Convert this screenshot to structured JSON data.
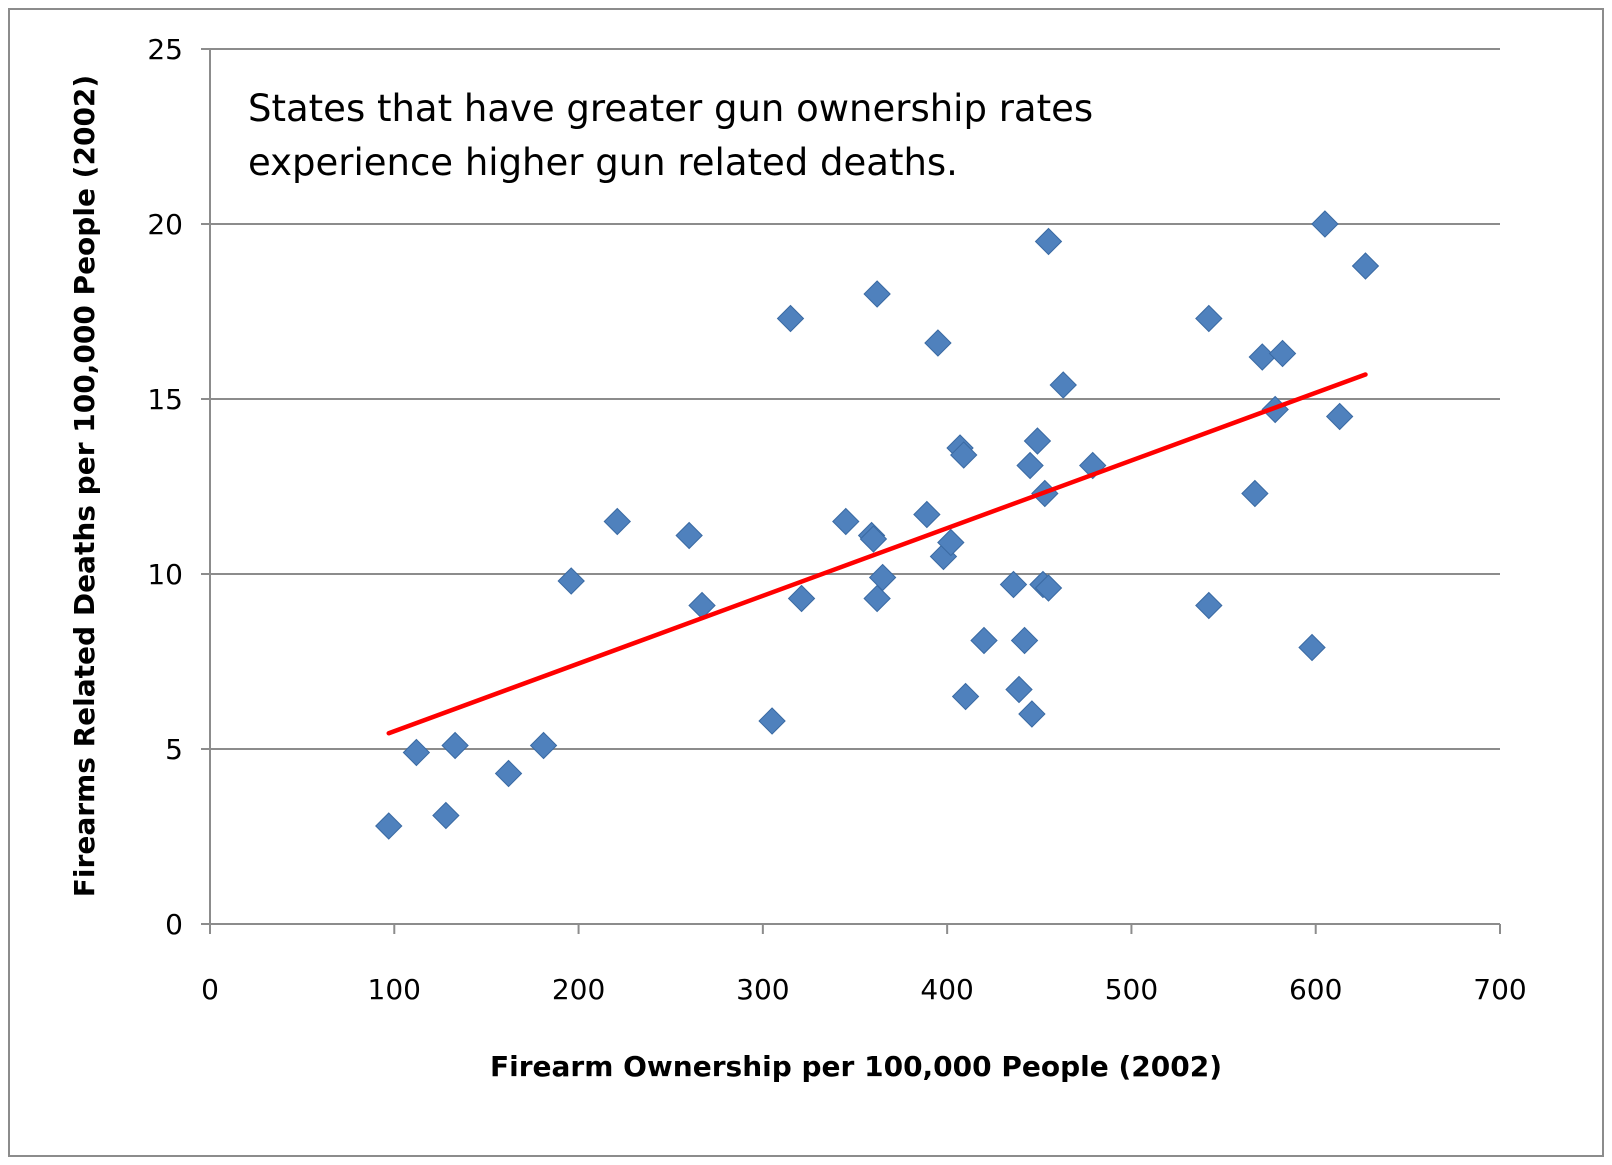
{
  "chart_data": {
    "type": "scatter",
    "xlabel": "Firearm Ownership per 100,000 People (2002)",
    "ylabel": "Firearms Related Deaths per 100,000 People (2002)",
    "annotation_lines": [
      "States that have greater gun ownership rates",
      "experience higher gun related deaths."
    ],
    "xlim": [
      0,
      700
    ],
    "ylim": [
      0,
      25
    ],
    "x_ticks": [
      0,
      100,
      200,
      300,
      400,
      500,
      600,
      700
    ],
    "y_ticks": [
      0,
      5,
      10,
      15,
      20,
      25
    ],
    "grid": "horizontal",
    "marker_color": "#4f81bd",
    "trendline_color": "#ff0000",
    "points": [
      {
        "x": 97,
        "y": 2.8
      },
      {
        "x": 112,
        "y": 4.9
      },
      {
        "x": 128,
        "y": 3.1
      },
      {
        "x": 133,
        "y": 5.1
      },
      {
        "x": 162,
        "y": 4.3
      },
      {
        "x": 181,
        "y": 5.1
      },
      {
        "x": 196,
        "y": 9.8
      },
      {
        "x": 221,
        "y": 11.5
      },
      {
        "x": 260,
        "y": 11.1
      },
      {
        "x": 267,
        "y": 9.1
      },
      {
        "x": 305,
        "y": 5.8
      },
      {
        "x": 315,
        "y": 17.3
      },
      {
        "x": 321,
        "y": 9.3
      },
      {
        "x": 345,
        "y": 11.5
      },
      {
        "x": 359,
        "y": 11.1
      },
      {
        "x": 360,
        "y": 11.0
      },
      {
        "x": 362,
        "y": 18.0
      },
      {
        "x": 362,
        "y": 9.3
      },
      {
        "x": 365,
        "y": 9.9
      },
      {
        "x": 389,
        "y": 11.7
      },
      {
        "x": 395,
        "y": 16.6
      },
      {
        "x": 398,
        "y": 10.5
      },
      {
        "x": 402,
        "y": 10.9
      },
      {
        "x": 407,
        "y": 13.6
      },
      {
        "x": 409,
        "y": 13.4
      },
      {
        "x": 410,
        "y": 6.5
      },
      {
        "x": 420,
        "y": 8.1
      },
      {
        "x": 436,
        "y": 9.7
      },
      {
        "x": 439,
        "y": 6.7
      },
      {
        "x": 442,
        "y": 8.1
      },
      {
        "x": 445,
        "y": 13.1
      },
      {
        "x": 446,
        "y": 6.0
      },
      {
        "x": 449,
        "y": 13.8
      },
      {
        "x": 452,
        "y": 9.7
      },
      {
        "x": 453,
        "y": 12.3
      },
      {
        "x": 455,
        "y": 19.5
      },
      {
        "x": 455,
        "y": 9.6
      },
      {
        "x": 463,
        "y": 15.4
      },
      {
        "x": 479,
        "y": 13.1
      },
      {
        "x": 542,
        "y": 17.3
      },
      {
        "x": 542,
        "y": 9.1
      },
      {
        "x": 567,
        "y": 12.3
      },
      {
        "x": 571,
        "y": 16.2
      },
      {
        "x": 578,
        "y": 14.7
      },
      {
        "x": 582,
        "y": 16.3
      },
      {
        "x": 598,
        "y": 7.9
      },
      {
        "x": 605,
        "y": 20.0
      },
      {
        "x": 613,
        "y": 14.5
      },
      {
        "x": 627,
        "y": 18.8
      }
    ],
    "trendline": {
      "x": [
        97,
        627
      ],
      "y": [
        5.45,
        15.7
      ]
    }
  }
}
